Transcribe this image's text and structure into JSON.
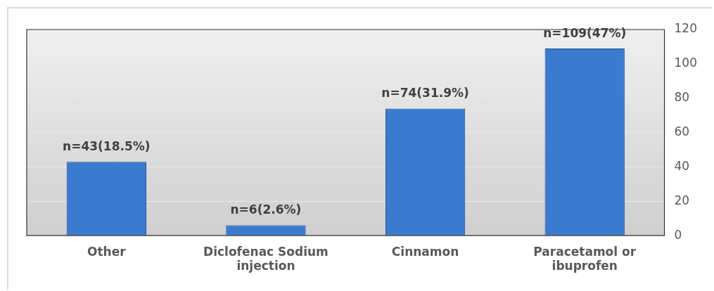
{
  "chart_data": {
    "type": "bar",
    "categories": [
      "Other",
      "Diclofenac Sodium injection",
      "Cinnamon",
      "Paracetamol or ibuprofen"
    ],
    "values": [
      43,
      6,
      74,
      109
    ],
    "color": "#3a7bd0",
    "value_labels": [
      "n=43(18.5%)",
      "n=6(2.6%)",
      "n=74(31.9%)",
      "n=109(47%)"
    ],
    "ylim": [
      0,
      120
    ],
    "yticks": [
      0,
      20,
      40,
      60,
      80,
      100,
      120
    ],
    "grid": "y",
    "legend": false
  }
}
